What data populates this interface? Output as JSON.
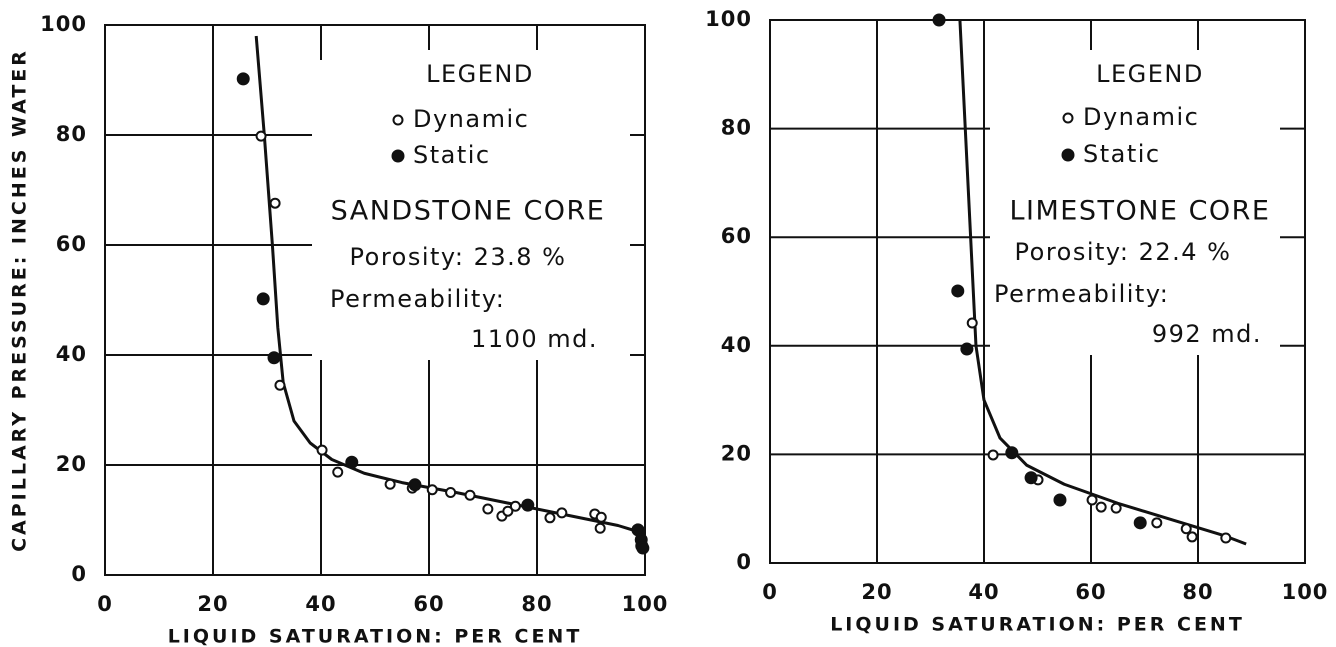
{
  "chart_data": [
    {
      "type": "scatter",
      "ylabel": "CAPILLARY PRESSURE: INCHES WATER",
      "xlabel": "LIQUID SATURATION: PER CENT",
      "xlim": [
        0,
        100
      ],
      "ylim": [
        0,
        100
      ],
      "xticks": [
        0,
        20,
        40,
        60,
        80,
        100
      ],
      "yticks": [
        0,
        20,
        40,
        60,
        80,
        100
      ],
      "grid": true,
      "legend_title": "LEGEND",
      "series": [
        {
          "name": "Dynamic",
          "color": "#111111",
          "marker": "open",
          "x": [
            28.9,
            31.5,
            32.4,
            40.2,
            43.1,
            52.8,
            56.9,
            60.6,
            64,
            67.6,
            70.9,
            73.5,
            74.6,
            76,
            82.4,
            84.6,
            90.7,
            91.9,
            91.7
          ],
          "values": [
            79.8,
            67.6,
            34.5,
            22.7,
            18.7,
            16.5,
            15.8,
            15.5,
            15,
            14.5,
            12,
            10.7,
            11.6,
            12.5,
            10.4,
            11.3,
            11.1,
            10.5,
            8.5
          ]
        },
        {
          "name": "Static",
          "color": "#111111",
          "marker": "filled",
          "x": [
            25.6,
            29.3,
            31.3,
            45.7,
            57.4,
            78.3,
            98.7,
            99.3,
            99.4,
            99.6
          ],
          "values": [
            90.2,
            50.2,
            39.5,
            20.5,
            16.4,
            12.7,
            8.2,
            6.4,
            5.3,
            4.9
          ]
        }
      ],
      "curve": {
        "x": [
          28,
          29.5,
          31,
          32,
          33,
          35,
          38,
          42,
          48,
          55,
          65,
          75,
          85,
          95,
          100
        ],
        "y": [
          98,
          80,
          60,
          45,
          35,
          28,
          24,
          21,
          18.5,
          16.8,
          15,
          13,
          11,
          9,
          7.5
        ]
      },
      "annotations": [
        "SANDSTONE CORE",
        "Porosity: 23.8 %",
        "Permeability:",
        "1100 md."
      ]
    },
    {
      "type": "scatter",
      "xlabel": "LIQUID SATURATION: PER CENT",
      "xlim": [
        0,
        100
      ],
      "ylim": [
        0,
        100
      ],
      "xticks": [
        0,
        20,
        40,
        60,
        80,
        100
      ],
      "yticks": [
        0,
        20,
        40,
        60,
        80,
        100
      ],
      "grid": true,
      "legend_title": "LEGEND",
      "series": [
        {
          "name": "Dynamic",
          "color": "#111111",
          "marker": "open",
          "x": [
            37.8,
            41.7,
            50.1,
            60.2,
            61.9,
            64.7,
            72.3,
            77.8,
            78.9,
            85.2
          ],
          "values": [
            44.2,
            19.9,
            15.3,
            11.6,
            10.3,
            10.1,
            7.4,
            6.3,
            4.8,
            4.6
          ]
        },
        {
          "name": "Static",
          "color": "#111111",
          "marker": "filled",
          "x": [
            31.6,
            35.1,
            36.8,
            45.2,
            48.8,
            54.2,
            69.2
          ],
          "values": [
            100,
            50.1,
            39.4,
            20.3,
            15.7,
            11.6,
            7.4
          ]
        }
      ],
      "curve": {
        "x": [
          35.5,
          36.5,
          37.5,
          38.5,
          40,
          43,
          48,
          55,
          65,
          75,
          85,
          89
        ],
        "y": [
          100,
          80,
          60,
          40,
          30,
          23,
          18,
          14.5,
          11,
          8,
          5,
          3.5
        ]
      },
      "annotations": [
        "LIMESTONE CORE",
        "Porosity: 22.4 %",
        "Permeability:",
        "992 md."
      ]
    }
  ]
}
